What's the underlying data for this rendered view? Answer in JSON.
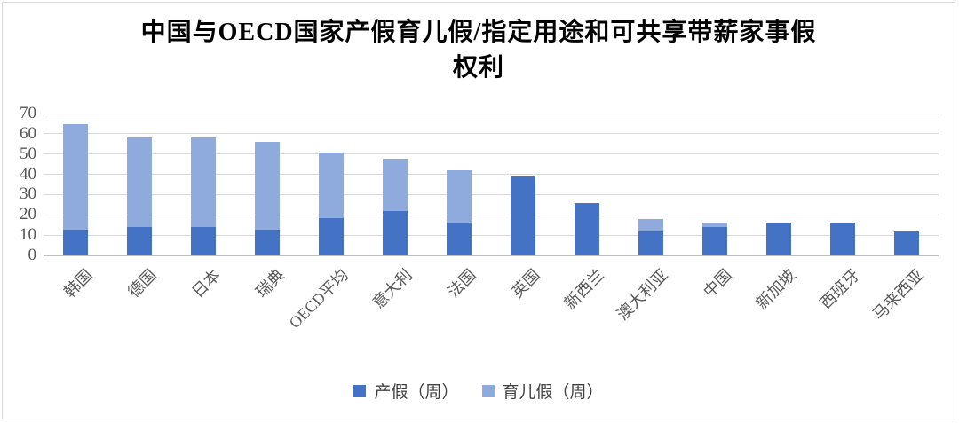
{
  "title": {
    "line1": "中国与OECD国家产假育儿假/指定用途和可共享带薪家事假",
    "line2": "权利"
  },
  "colors": {
    "maternity": "#4472C4",
    "parental": "#8FAADC",
    "gridline": "#D9D9D9",
    "axis_line": "#BFBFBF",
    "tick_label": "#595959",
    "frame_border": "#D9D9D9",
    "background": "#FFFFFF"
  },
  "legend": {
    "items": [
      {
        "label": "产假（周）",
        "color": "#4472C4"
      },
      {
        "label": "育儿假（周）",
        "color": "#8FAADC"
      }
    ]
  },
  "chart_data": {
    "type": "bar",
    "stacked": true,
    "title": "中国与OECD国家产假育儿假/指定用途和可共享带薪家事假权利",
    "categories": [
      "韩国",
      "德国",
      "日本",
      "瑞典",
      "OECD平均",
      "意大利",
      "法国",
      "英国",
      "新西兰",
      "澳大利亚",
      "中国",
      "新加坡",
      "西班牙",
      "马来西亚"
    ],
    "series": [
      {
        "name": "产假（周）",
        "color": "#4472C4",
        "values": [
          12.9,
          14,
          14,
          12.9,
          18.5,
          21.7,
          16,
          39,
          26,
          12,
          14,
          16,
          16,
          12
        ]
      },
      {
        "name": "育儿假（周）",
        "color": "#8FAADC",
        "values": [
          52,
          44,
          44,
          42.9,
          32.3,
          26,
          26,
          0,
          0,
          6,
          2,
          0,
          0,
          0
        ]
      }
    ],
    "totals": [
      64.9,
      58,
      58,
      55.8,
      50.8,
      47.7,
      42,
      39,
      26,
      18,
      16,
      16,
      16,
      12
    ],
    "xlabel": "",
    "ylabel": "",
    "ylim": [
      0,
      70
    ],
    "yticks": [
      0,
      10,
      20,
      30,
      40,
      50,
      60,
      70
    ],
    "grid": true,
    "legend_position": "bottom"
  }
}
